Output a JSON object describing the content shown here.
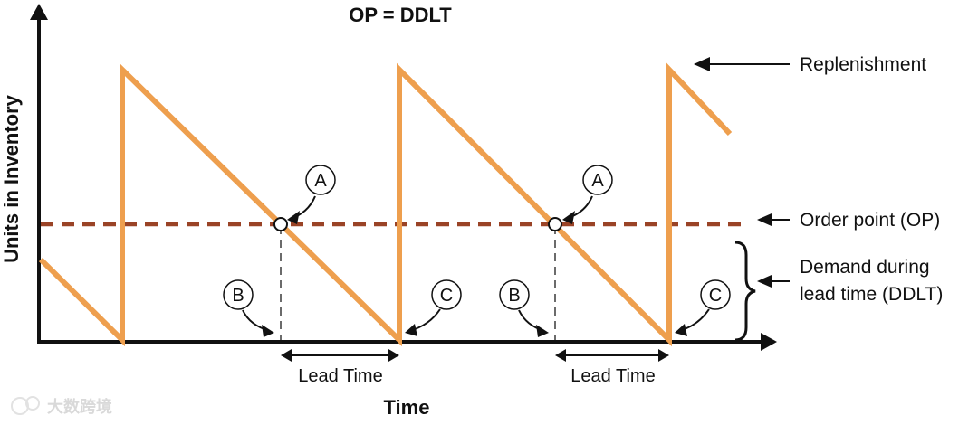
{
  "title": "OP = DDLT",
  "axes": {
    "y_label": "Units in Inventory",
    "x_label": "Time"
  },
  "annotations": {
    "replenishment": "Replenishment",
    "order_point": "Order point (OP)",
    "ddlt_line1": "Demand during",
    "ddlt_line2": "lead time (DDLT)"
  },
  "markers": {
    "a": "A",
    "b": "B",
    "c": "C"
  },
  "lead_time_label": "Lead Time",
  "colors": {
    "inventory_line": "#ee9f4e",
    "order_point_line": "#9a4326",
    "axis": "#111111",
    "guide": "#6b6b6b"
  },
  "watermark": "大数跨境"
}
